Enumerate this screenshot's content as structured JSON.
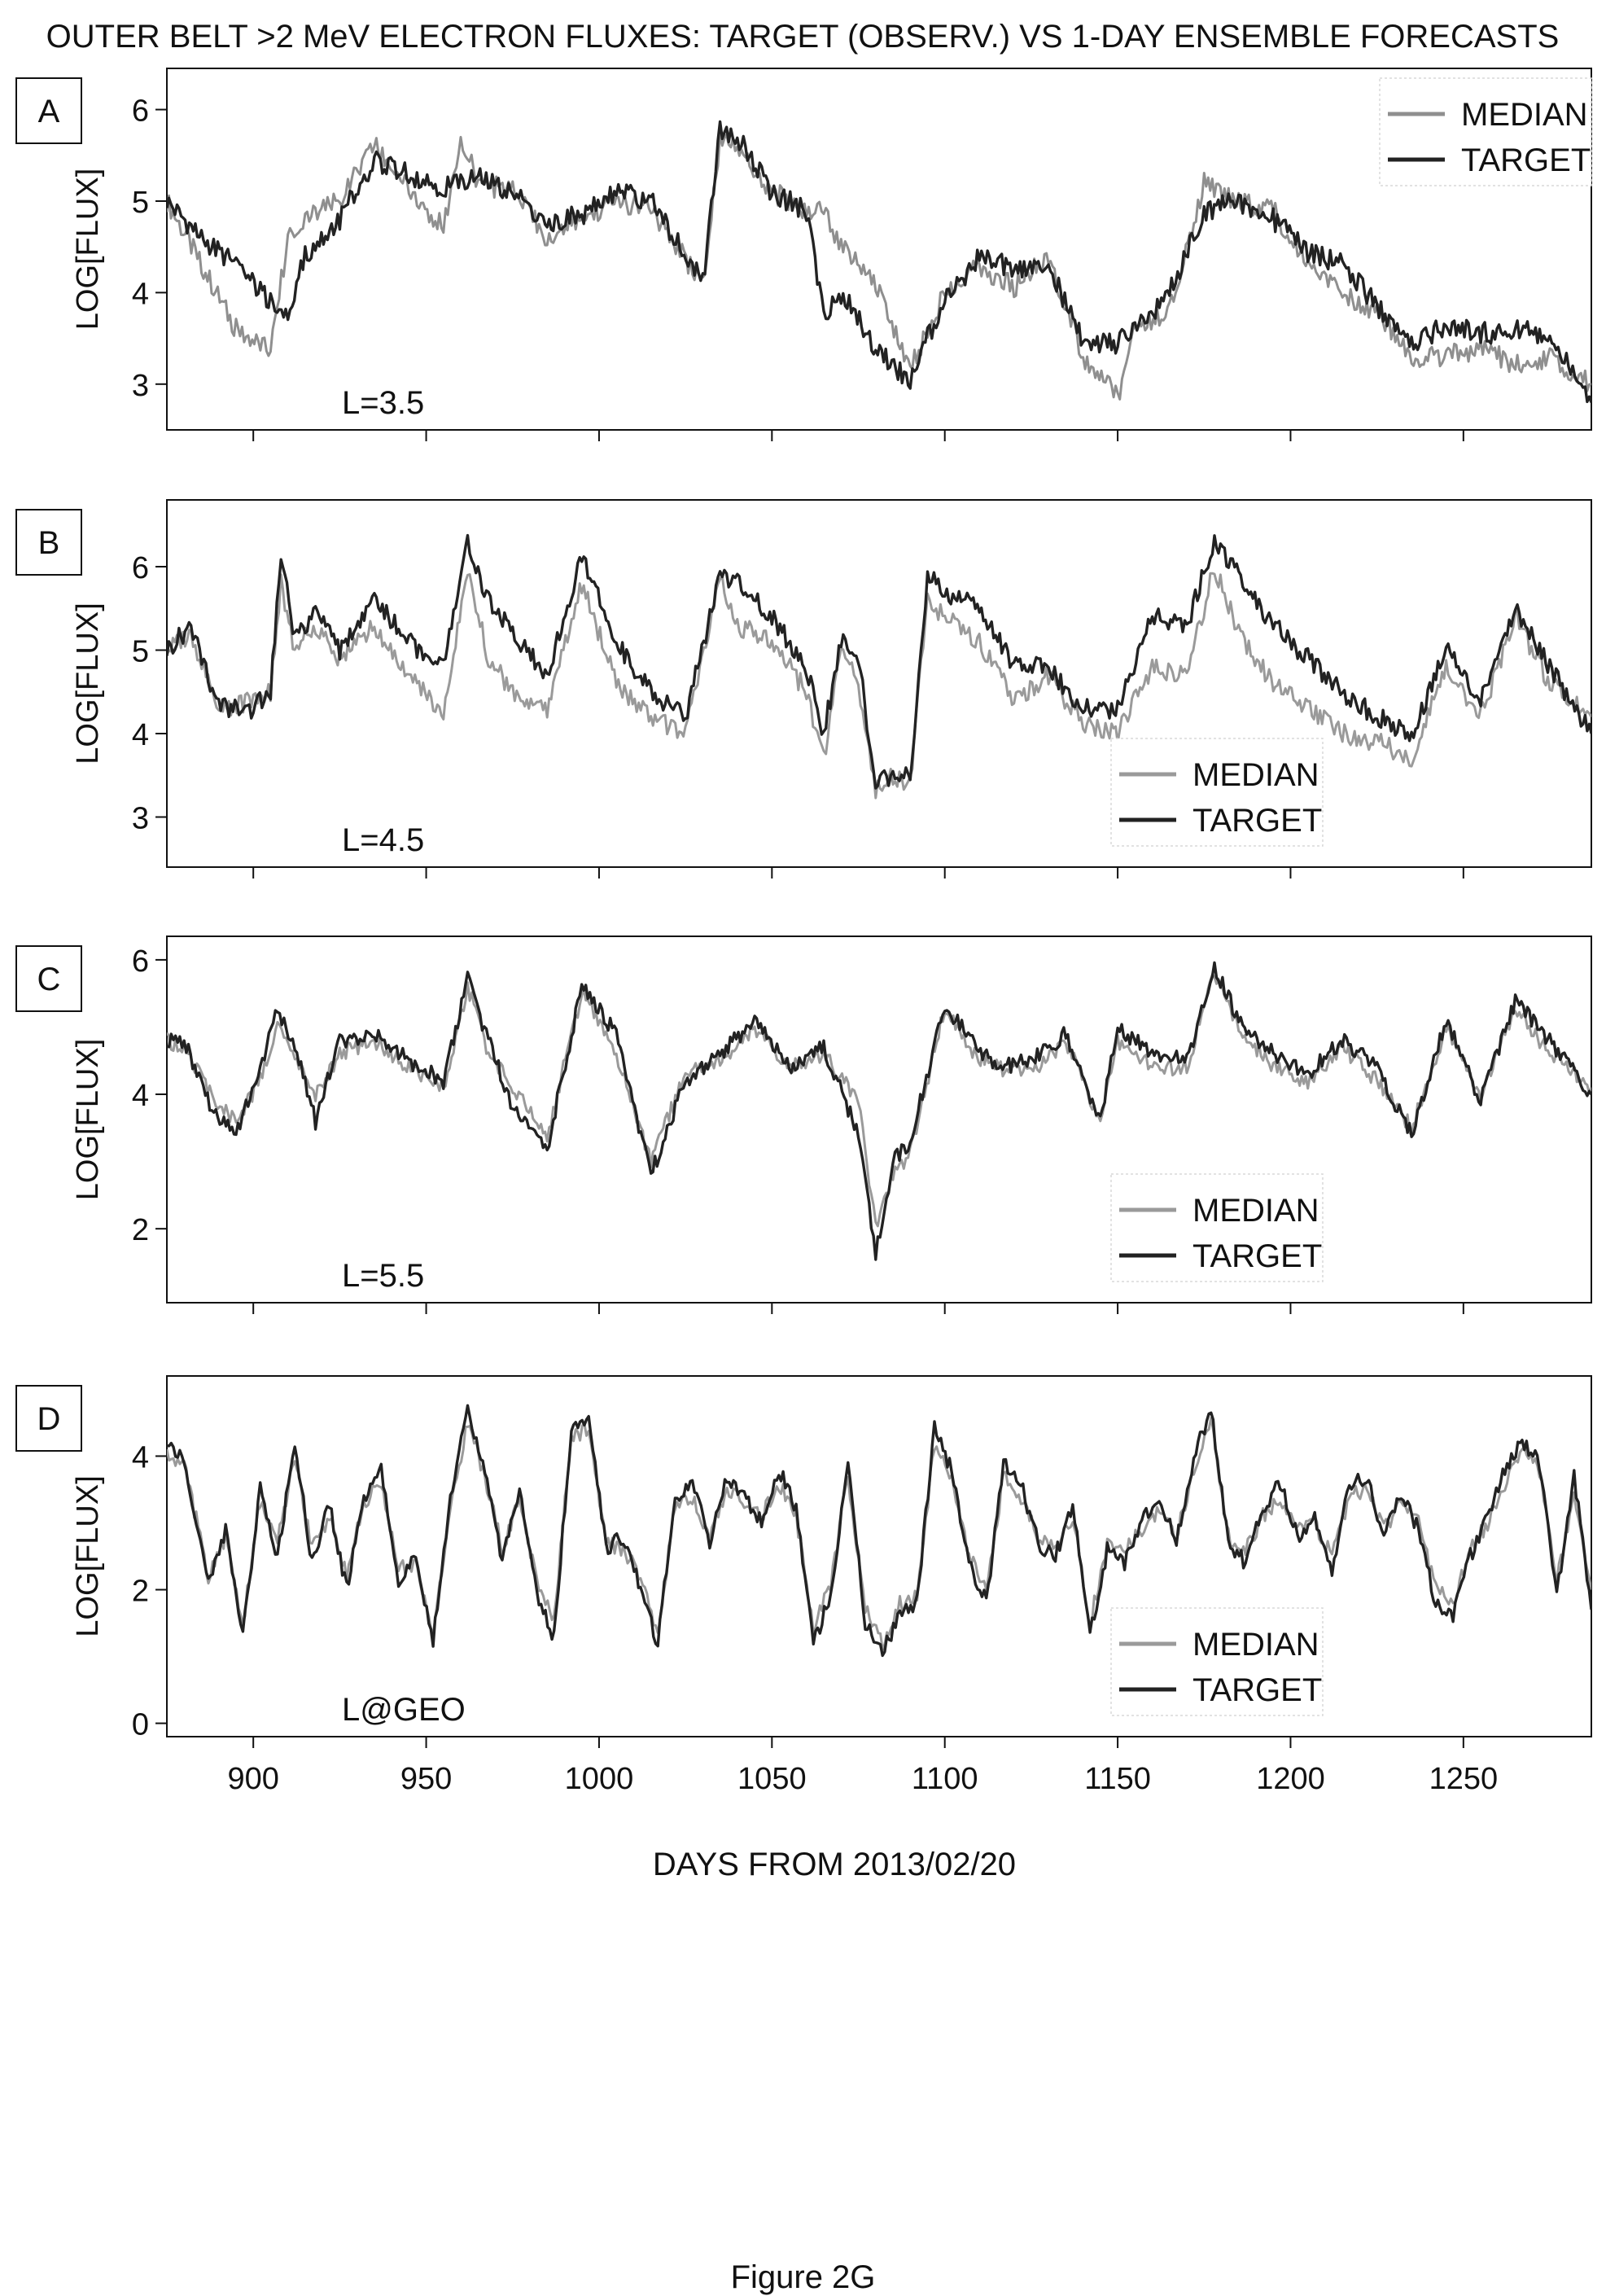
{
  "figure": {
    "title": "OUTER BELT >2 MeV ELECTRON FLUXES: TARGET (OBSERV.) VS 1-DAY ENSEMBLE FORECASTS",
    "xlabel": "DAYS FROM 2013/02/20",
    "caption": "Figure 2G"
  },
  "chart_data": [
    {
      "type": "line",
      "panel": "A",
      "annotation": "L=3.5",
      "ylabel": "LOG[FLUX]",
      "xlim": [
        875,
        1287
      ],
      "ylim": [
        2.5,
        6.45
      ],
      "yticks": [
        3,
        4,
        5,
        6
      ],
      "xticks": [
        900,
        950,
        1000,
        1050,
        1100,
        1150,
        1200,
        1250
      ],
      "xtick_labels": [
        "",
        "",
        "",
        "",
        "",
        "",
        "",
        ""
      ],
      "legend": "top-right",
      "series": [
        {
          "name": "MEDIAN",
          "color": "#8f8f8f",
          "x": [
            875,
            885,
            895,
            905,
            910,
            915,
            925,
            935,
            945,
            955,
            960,
            965,
            975,
            985,
            995,
            1005,
            1015,
            1030,
            1035,
            1040,
            1050,
            1060,
            1065,
            1070,
            1080,
            1090,
            1095,
            1100,
            1110,
            1120,
            1130,
            1140,
            1150,
            1155,
            1165,
            1175,
            1185,
            1195,
            1205,
            1215,
            1225,
            1235,
            1245,
            1255,
            1265,
            1275,
            1287
          ],
          "y": [
            5.0,
            4.3,
            3.6,
            3.35,
            4.6,
            4.8,
            5.0,
            5.6,
            5.15,
            4.7,
            5.7,
            5.2,
            5.1,
            4.6,
            4.8,
            5.0,
            4.9,
            4.1,
            5.7,
            5.6,
            5.1,
            4.9,
            4.9,
            4.5,
            4.1,
            3.15,
            3.6,
            4.0,
            4.3,
            4.05,
            4.4,
            3.3,
            2.85,
            3.6,
            3.8,
            5.2,
            5.0,
            4.9,
            4.3,
            4.0,
            3.8,
            3.3,
            3.3,
            3.4,
            3.2,
            3.3,
            3.0
          ]
        },
        {
          "name": "TARGET",
          "color": "#222222",
          "x": [
            875,
            885,
            895,
            905,
            910,
            915,
            925,
            935,
            945,
            955,
            960,
            965,
            975,
            985,
            995,
            1005,
            1015,
            1030,
            1035,
            1040,
            1050,
            1060,
            1065,
            1070,
            1080,
            1090,
            1095,
            1100,
            1110,
            1120,
            1130,
            1140,
            1150,
            1155,
            1165,
            1175,
            1185,
            1195,
            1205,
            1215,
            1225,
            1235,
            1245,
            1255,
            1265,
            1275,
            1287
          ],
          "y": [
            5.0,
            4.6,
            4.3,
            3.9,
            3.75,
            4.4,
            4.8,
            5.45,
            5.3,
            5.15,
            5.2,
            5.25,
            5.1,
            4.75,
            4.85,
            5.1,
            5.0,
            4.1,
            5.8,
            5.7,
            5.1,
            4.9,
            3.75,
            4.0,
            3.4,
            3.0,
            3.5,
            3.9,
            4.4,
            4.25,
            4.3,
            3.45,
            3.45,
            3.6,
            4.0,
            4.9,
            5.0,
            4.8,
            4.45,
            4.3,
            3.85,
            3.45,
            3.65,
            3.55,
            3.6,
            3.5,
            2.8
          ]
        }
      ]
    },
    {
      "type": "line",
      "panel": "B",
      "annotation": "L=4.5",
      "ylabel": "LOG[FLUX]",
      "xlim": [
        875,
        1287
      ],
      "ylim": [
        2.4,
        6.8
      ],
      "yticks": [
        3,
        4,
        5,
        6
      ],
      "xticks": [
        900,
        950,
        1000,
        1050,
        1100,
        1150,
        1200,
        1250
      ],
      "xtick_labels": [
        "",
        "",
        "",
        "",
        "",
        "",
        "",
        ""
      ],
      "legend": "bottom-center",
      "series": [
        {
          "name": "MEDIAN",
          "color": "#9a9a9a",
          "x": [
            875,
            882,
            890,
            900,
            905,
            908,
            912,
            918,
            925,
            935,
            945,
            955,
            962,
            968,
            975,
            985,
            995,
            1005,
            1015,
            1025,
            1035,
            1040,
            1050,
            1060,
            1065,
            1070,
            1075,
            1080,
            1085,
            1090,
            1095,
            1100,
            1110,
            1120,
            1130,
            1140,
            1150,
            1160,
            1170,
            1178,
            1185,
            1195,
            1205,
            1215,
            1225,
            1235,
            1245,
            1255,
            1265,
            1275,
            1287
          ],
          "y": [
            5.0,
            5.2,
            4.3,
            4.4,
            4.5,
            5.8,
            5.0,
            5.3,
            4.9,
            5.3,
            4.7,
            4.2,
            6.0,
            4.9,
            4.5,
            4.3,
            5.8,
            4.6,
            4.2,
            4.0,
            5.9,
            5.3,
            5.1,
            4.5,
            3.7,
            5.0,
            4.6,
            3.3,
            3.5,
            3.4,
            5.6,
            5.4,
            5.1,
            4.4,
            4.7,
            4.1,
            4.0,
            4.8,
            4.7,
            6.0,
            5.2,
            4.6,
            4.3,
            4.0,
            3.9,
            3.7,
            4.8,
            4.2,
            5.4,
            4.6,
            4.2
          ]
        },
        {
          "name": "TARGET",
          "color": "#222222",
          "x": [
            875,
            882,
            890,
            900,
            905,
            908,
            912,
            918,
            925,
            935,
            945,
            955,
            962,
            968,
            975,
            985,
            995,
            1005,
            1015,
            1025,
            1035,
            1040,
            1050,
            1060,
            1065,
            1070,
            1075,
            1080,
            1085,
            1090,
            1095,
            1100,
            1110,
            1120,
            1130,
            1140,
            1150,
            1160,
            1170,
            1178,
            1185,
            1195,
            1205,
            1215,
            1225,
            1235,
            1245,
            1255,
            1265,
            1275,
            1287
          ],
          "y": [
            5.0,
            5.3,
            4.3,
            4.3,
            4.5,
            6.2,
            5.1,
            5.5,
            5.0,
            5.6,
            5.1,
            4.8,
            6.3,
            5.6,
            5.2,
            4.7,
            6.1,
            5.1,
            4.5,
            4.2,
            5.9,
            5.8,
            5.4,
            4.8,
            4.0,
            5.1,
            4.9,
            3.4,
            3.5,
            3.5,
            5.9,
            5.7,
            5.5,
            4.8,
            4.8,
            4.3,
            4.3,
            5.4,
            5.3,
            6.3,
            5.9,
            5.3,
            4.9,
            4.5,
            4.2,
            4.0,
            5.0,
            4.4,
            5.5,
            4.8,
            4.0
          ]
        }
      ]
    },
    {
      "type": "line",
      "panel": "C",
      "annotation": "L=5.5",
      "ylabel": "LOG[FLUX]",
      "xlim": [
        875,
        1287
      ],
      "ylim": [
        0.9,
        6.35
      ],
      "yticks": [
        2,
        4,
        6
      ],
      "xticks": [
        900,
        950,
        1000,
        1050,
        1100,
        1150,
        1200,
        1250
      ],
      "xtick_labels": [
        "",
        "",
        "",
        "",
        "",
        "",
        "",
        ""
      ],
      "legend": "bottom-center",
      "series": [
        {
          "name": "MEDIAN",
          "color": "#9a9a9a",
          "x": [
            875,
            880,
            888,
            895,
            902,
            907,
            912,
            918,
            925,
            935,
            945,
            955,
            962,
            968,
            975,
            985,
            995,
            1005,
            1015,
            1025,
            1035,
            1045,
            1055,
            1065,
            1075,
            1080,
            1085,
            1090,
            1100,
            1108,
            1115,
            1125,
            1135,
            1145,
            1150,
            1160,
            1170,
            1178,
            1185,
            1195,
            1205,
            1215,
            1225,
            1235,
            1245,
            1255,
            1265,
            1275,
            1287
          ],
          "y": [
            4.8,
            4.7,
            4.0,
            3.6,
            4.2,
            5.0,
            4.6,
            4.0,
            4.6,
            4.8,
            4.4,
            4.1,
            5.6,
            4.6,
            4.1,
            3.4,
            5.5,
            4.6,
            3.0,
            4.3,
            4.5,
            5.0,
            4.4,
            4.6,
            3.9,
            2.0,
            2.8,
            3.1,
            5.3,
            4.6,
            4.4,
            4.3,
            4.8,
            3.6,
            4.8,
            4.4,
            4.4,
            5.8,
            5.0,
            4.4,
            4.2,
            4.7,
            4.2,
            3.5,
            5.0,
            4.0,
            5.3,
            4.6,
            4.1
          ]
        },
        {
          "name": "TARGET",
          "color": "#222222",
          "x": [
            875,
            880,
            888,
            895,
            902,
            907,
            912,
            918,
            925,
            935,
            945,
            955,
            962,
            968,
            975,
            985,
            995,
            1005,
            1015,
            1025,
            1035,
            1045,
            1055,
            1065,
            1075,
            1080,
            1085,
            1090,
            1100,
            1108,
            1115,
            1125,
            1135,
            1145,
            1150,
            1160,
            1170,
            1178,
            1185,
            1195,
            1205,
            1215,
            1225,
            1235,
            1245,
            1255,
            1265,
            1275,
            1287
          ],
          "y": [
            4.8,
            4.8,
            3.8,
            3.4,
            4.4,
            5.3,
            4.7,
            3.6,
            4.8,
            4.9,
            4.5,
            4.2,
            5.7,
            4.8,
            3.8,
            3.2,
            5.6,
            4.9,
            2.8,
            4.2,
            4.6,
            5.1,
            4.4,
            4.7,
            3.4,
            1.6,
            3.0,
            3.3,
            5.3,
            4.8,
            4.4,
            4.5,
            4.9,
            3.6,
            5.0,
            4.6,
            4.5,
            5.9,
            5.1,
            4.6,
            4.3,
            4.8,
            4.4,
            3.4,
            5.1,
            3.9,
            5.4,
            4.8,
            4.0
          ]
        }
      ]
    },
    {
      "type": "line",
      "panel": "D",
      "annotation": "L@GEO",
      "ylabel": "LOG[FLUX]",
      "xlim": [
        875,
        1287
      ],
      "ylim": [
        -0.2,
        5.2
      ],
      "yticks": [
        0,
        2,
        4
      ],
      "xticks": [
        900,
        950,
        1000,
        1050,
        1100,
        1150,
        1200,
        1250
      ],
      "xtick_labels": [
        "900",
        "950",
        "1000",
        "1050",
        "1100",
        "1150",
        "1200",
        "1250"
      ],
      "legend": "bottom-center",
      "series": [
        {
          "name": "MEDIAN",
          "color": "#9a9a9a",
          "x": [
            875,
            880,
            887,
            892,
            897,
            902,
            907,
            912,
            917,
            922,
            927,
            932,
            937,
            942,
            947,
            952,
            957,
            962,
            967,
            972,
            977,
            982,
            987,
            992,
            997,
            1002,
            1007,
            1012,
            1017,
            1022,
            1027,
            1032,
            1037,
            1042,
            1047,
            1052,
            1057,
            1062,
            1067,
            1072,
            1077,
            1082,
            1087,
            1092,
            1097,
            1102,
            1107,
            1112,
            1117,
            1122,
            1127,
            1132,
            1137,
            1142,
            1147,
            1152,
            1157,
            1162,
            1167,
            1172,
            1177,
            1182,
            1187,
            1192,
            1197,
            1202,
            1207,
            1212,
            1217,
            1222,
            1227,
            1232,
            1237,
            1242,
            1247,
            1252,
            1257,
            1262,
            1267,
            1272,
            1277,
            1282,
            1287
          ],
          "y": [
            4.0,
            3.9,
            2.2,
            2.8,
            1.5,
            3.3,
            2.7,
            4.0,
            2.6,
            3.1,
            2.2,
            3.3,
            3.6,
            2.3,
            2.4,
            1.3,
            3.2,
            4.5,
            3.7,
            2.6,
            3.4,
            2.1,
            1.6,
            4.3,
            4.4,
            2.7,
            2.6,
            2.2,
            1.3,
            3.3,
            3.4,
            2.8,
            3.5,
            3.3,
            3.1,
            3.6,
            3.1,
            1.4,
            2.1,
            3.7,
            1.7,
            1.2,
            1.8,
            1.9,
            4.2,
            3.6,
            2.5,
            2.0,
            3.7,
            3.4,
            2.8,
            2.7,
            3.1,
            1.5,
            2.7,
            2.6,
            2.9,
            3.2,
            2.8,
            3.8,
            4.5,
            2.8,
            2.6,
            3.1,
            3.4,
            2.9,
            3.0,
            2.5,
            3.4,
            3.5,
            2.9,
            3.3,
            3.0,
            2.0,
            1.8,
            2.6,
            3.0,
            3.6,
            4.1,
            3.8,
            2.1,
            3.5,
            2.0
          ]
        },
        {
          "name": "TARGET",
          "color": "#222222",
          "x": [
            875,
            880,
            887,
            892,
            897,
            902,
            907,
            912,
            917,
            922,
            927,
            932,
            937,
            942,
            947,
            952,
            957,
            962,
            967,
            972,
            977,
            982,
            987,
            992,
            997,
            1002,
            1007,
            1012,
            1017,
            1022,
            1027,
            1032,
            1037,
            1042,
            1047,
            1052,
            1057,
            1062,
            1067,
            1072,
            1077,
            1082,
            1087,
            1092,
            1097,
            1102,
            1107,
            1112,
            1117,
            1122,
            1127,
            1132,
            1137,
            1142,
            1147,
            1152,
            1157,
            1162,
            1167,
            1172,
            1177,
            1182,
            1187,
            1192,
            1197,
            1202,
            1207,
            1212,
            1217,
            1222,
            1227,
            1232,
            1237,
            1242,
            1247,
            1252,
            1257,
            1262,
            1267,
            1272,
            1277,
            1282,
            1287
          ],
          "y": [
            4.1,
            4.0,
            2.1,
            2.9,
            1.3,
            3.5,
            2.5,
            4.2,
            2.4,
            3.3,
            2.0,
            3.4,
            3.8,
            2.1,
            2.5,
            1.2,
            3.4,
            4.7,
            3.8,
            2.4,
            3.5,
            1.9,
            1.3,
            4.4,
            4.6,
            2.6,
            2.8,
            2.0,
            1.2,
            3.4,
            3.6,
            2.7,
            3.7,
            3.4,
            3.0,
            3.8,
            3.2,
            1.2,
            1.9,
            3.9,
            1.5,
            1.1,
            1.6,
            1.8,
            4.4,
            3.8,
            2.4,
            1.8,
            3.9,
            3.6,
            2.7,
            2.5,
            3.3,
            1.3,
            2.6,
            2.4,
            3.0,
            3.4,
            2.7,
            4.0,
            4.7,
            2.7,
            2.4,
            3.2,
            3.6,
            2.8,
            3.1,
            2.3,
            3.6,
            3.7,
            2.8,
            3.4,
            2.9,
            1.8,
            1.6,
            2.5,
            3.1,
            3.8,
            4.2,
            3.9,
            1.9,
            3.7,
            1.7
          ]
        }
      ]
    }
  ]
}
